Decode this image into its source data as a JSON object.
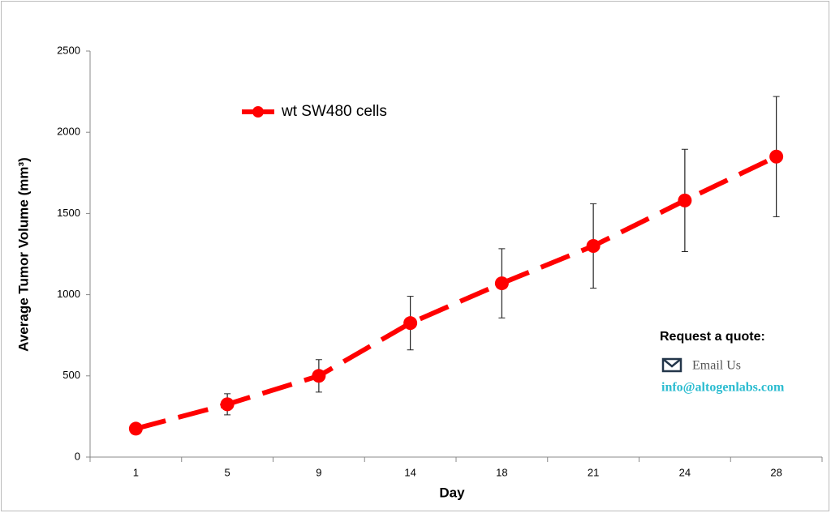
{
  "chart_data": {
    "type": "line",
    "xlabel": "Day",
    "ylabel": "Average Tumor Volume (mm³)",
    "categories": [
      "1",
      "5",
      "9",
      "14",
      "18",
      "21",
      "24",
      "28"
    ],
    "series": [
      {
        "name": "wt SW480 cells",
        "color": "#ff0000",
        "values": [
          175,
          325,
          500,
          825,
          1070,
          1300,
          1580,
          1850
        ],
        "errors": [
          10,
          65,
          100,
          165,
          213,
          260,
          315,
          370
        ]
      }
    ],
    "ylim": [
      0,
      2500
    ],
    "yticks": [
      0,
      500,
      1000,
      1500,
      2000,
      2500
    ],
    "annotations": [
      "Request a quote:",
      "Email Us",
      "info@altogenlabs.com"
    ]
  }
}
